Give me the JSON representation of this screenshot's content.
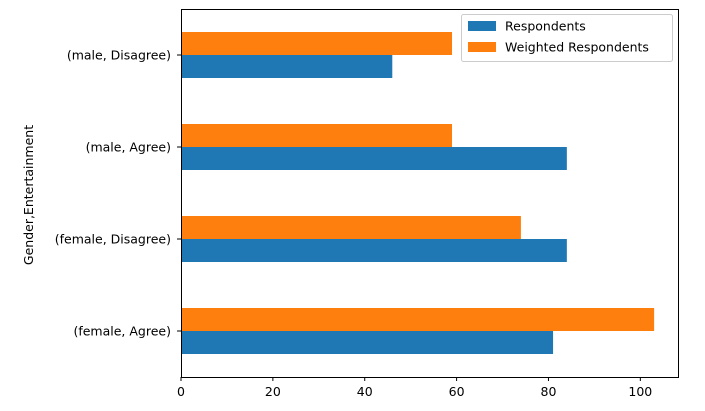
{
  "chart_data": {
    "type": "bar",
    "orientation": "horizontal",
    "categories": [
      "(female, Agree)",
      "(female, Disagree)",
      "(male, Agree)",
      "(male, Disagree)"
    ],
    "series": [
      {
        "name": "Respondents",
        "values": [
          81,
          84,
          84,
          46
        ],
        "color": "#1f77b4"
      },
      {
        "name": "Weighted Respondents",
        "values": [
          103,
          74,
          59,
          59
        ],
        "color": "#ff7f0e"
      }
    ],
    "xticks": [
      0,
      20,
      40,
      60,
      80,
      100
    ],
    "xlim": [
      0,
      108.2
    ],
    "xlabel": "",
    "ylabel": "Gender,Entertainment",
    "grid": false,
    "legend": {
      "placement": "upper-right"
    }
  }
}
